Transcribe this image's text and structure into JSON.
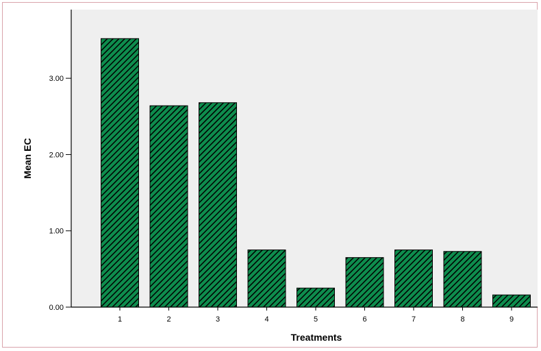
{
  "chart_data": {
    "type": "bar",
    "categories": [
      "1",
      "2",
      "3",
      "4",
      "5",
      "6",
      "7",
      "8",
      "9"
    ],
    "values": [
      3.52,
      2.64,
      2.68,
      0.75,
      0.25,
      0.65,
      0.75,
      0.73,
      0.16
    ],
    "xlabel": "Treatments",
    "ylabel": "Mean EC",
    "ylim": [
      0,
      3.9
    ],
    "yticks": [
      0,
      1,
      2,
      3
    ],
    "ytick_labels": [
      "0.00",
      "1.00",
      "2.00",
      "3.00"
    ],
    "grid": false,
    "legend": "none",
    "colors": {
      "bar_fill": "#0e8c4d",
      "bar_hatch": "#000000",
      "plot_background": "#efefef",
      "axis_line": "#000000",
      "frame_border": "#d9a3ab"
    }
  }
}
